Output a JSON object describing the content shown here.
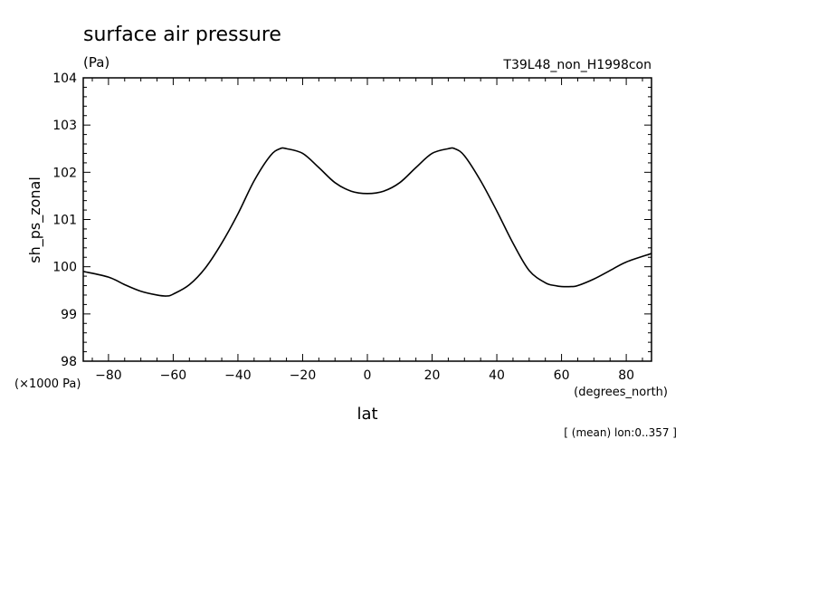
{
  "chart_data": {
    "type": "line",
    "title": "surface air pressure",
    "units": "(Pa)",
    "experiment": "T39L48_non_H1998con",
    "ylabel": "sh_ps_zonal",
    "y_scale_note": "(×1000 Pa)",
    "xlabel": "lat",
    "x_units": "(degrees_north)",
    "note": "[ (mean) lon:0..357 ]",
    "xlim": [
      -87.8,
      87.8
    ],
    "ylim": [
      98,
      104
    ],
    "x_ticks": [
      -80,
      -60,
      -40,
      -20,
      0,
      20,
      40,
      60,
      80
    ],
    "x_tick_labels": [
      "−80",
      "−60",
      "−40",
      "−20",
      "0",
      "20",
      "40",
      "60",
      "80"
    ],
    "y_ticks": [
      98,
      99,
      100,
      101,
      102,
      103,
      104
    ],
    "y_tick_labels": [
      "98",
      "99",
      "100",
      "101",
      "102",
      "103",
      "104"
    ],
    "grid": false,
    "series": [
      {
        "x": [
          -87.8,
          -80,
          -75,
          -70,
          -65,
          -62,
          -60,
          -55,
          -50,
          -45,
          -40,
          -35,
          -30,
          -27,
          -25,
          -20,
          -15,
          -10,
          -5,
          0,
          5,
          10,
          15,
          20,
          25,
          27,
          30,
          35,
          40,
          45,
          50,
          55,
          58,
          60,
          63,
          65,
          70,
          75,
          80,
          87.8
        ],
        "y": [
          99.9,
          99.78,
          99.62,
          99.48,
          99.4,
          99.38,
          99.42,
          99.62,
          99.98,
          100.5,
          101.12,
          101.82,
          102.35,
          102.5,
          102.5,
          102.4,
          102.1,
          101.78,
          101.6,
          101.55,
          101.6,
          101.78,
          102.1,
          102.4,
          102.5,
          102.5,
          102.35,
          101.82,
          101.18,
          100.5,
          99.92,
          99.66,
          99.6,
          99.58,
          99.58,
          99.6,
          99.74,
          99.92,
          100.1,
          100.28
        ]
      }
    ]
  }
}
